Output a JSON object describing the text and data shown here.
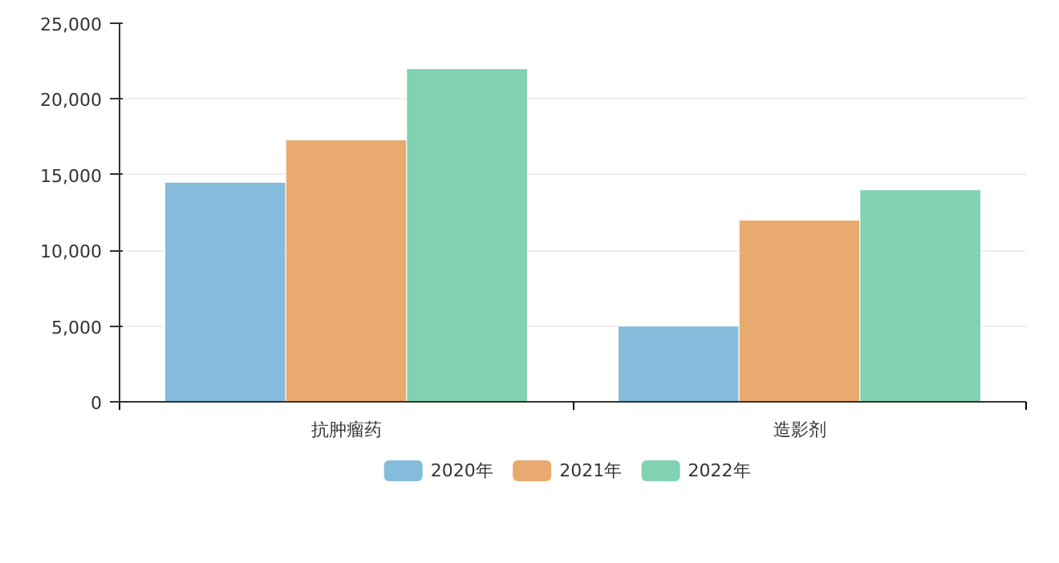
{
  "chart_data": {
    "type": "bar",
    "categories": [
      "抗肿瘤药",
      "造影剂"
    ],
    "series": [
      {
        "name": "2020年",
        "color": "#85bcdb",
        "values": [
          14500,
          5000
        ]
      },
      {
        "name": "2021年",
        "color": "#e8aa6e",
        "values": [
          17300,
          12000
        ]
      },
      {
        "name": "2022年",
        "color": "#82d2b1",
        "values": [
          22000,
          14000
        ]
      }
    ],
    "ylim": [
      0,
      25000
    ],
    "yticks": [
      {
        "value": 0,
        "label": "0"
      },
      {
        "value": 5000,
        "label": "5,000"
      },
      {
        "value": 10000,
        "label": "10,000"
      },
      {
        "value": 15000,
        "label": "15,000"
      },
      {
        "value": 20000,
        "label": "20,000"
      },
      {
        "value": 25000,
        "label": "25,000"
      }
    ],
    "grid": "y",
    "legend": "bottom"
  }
}
